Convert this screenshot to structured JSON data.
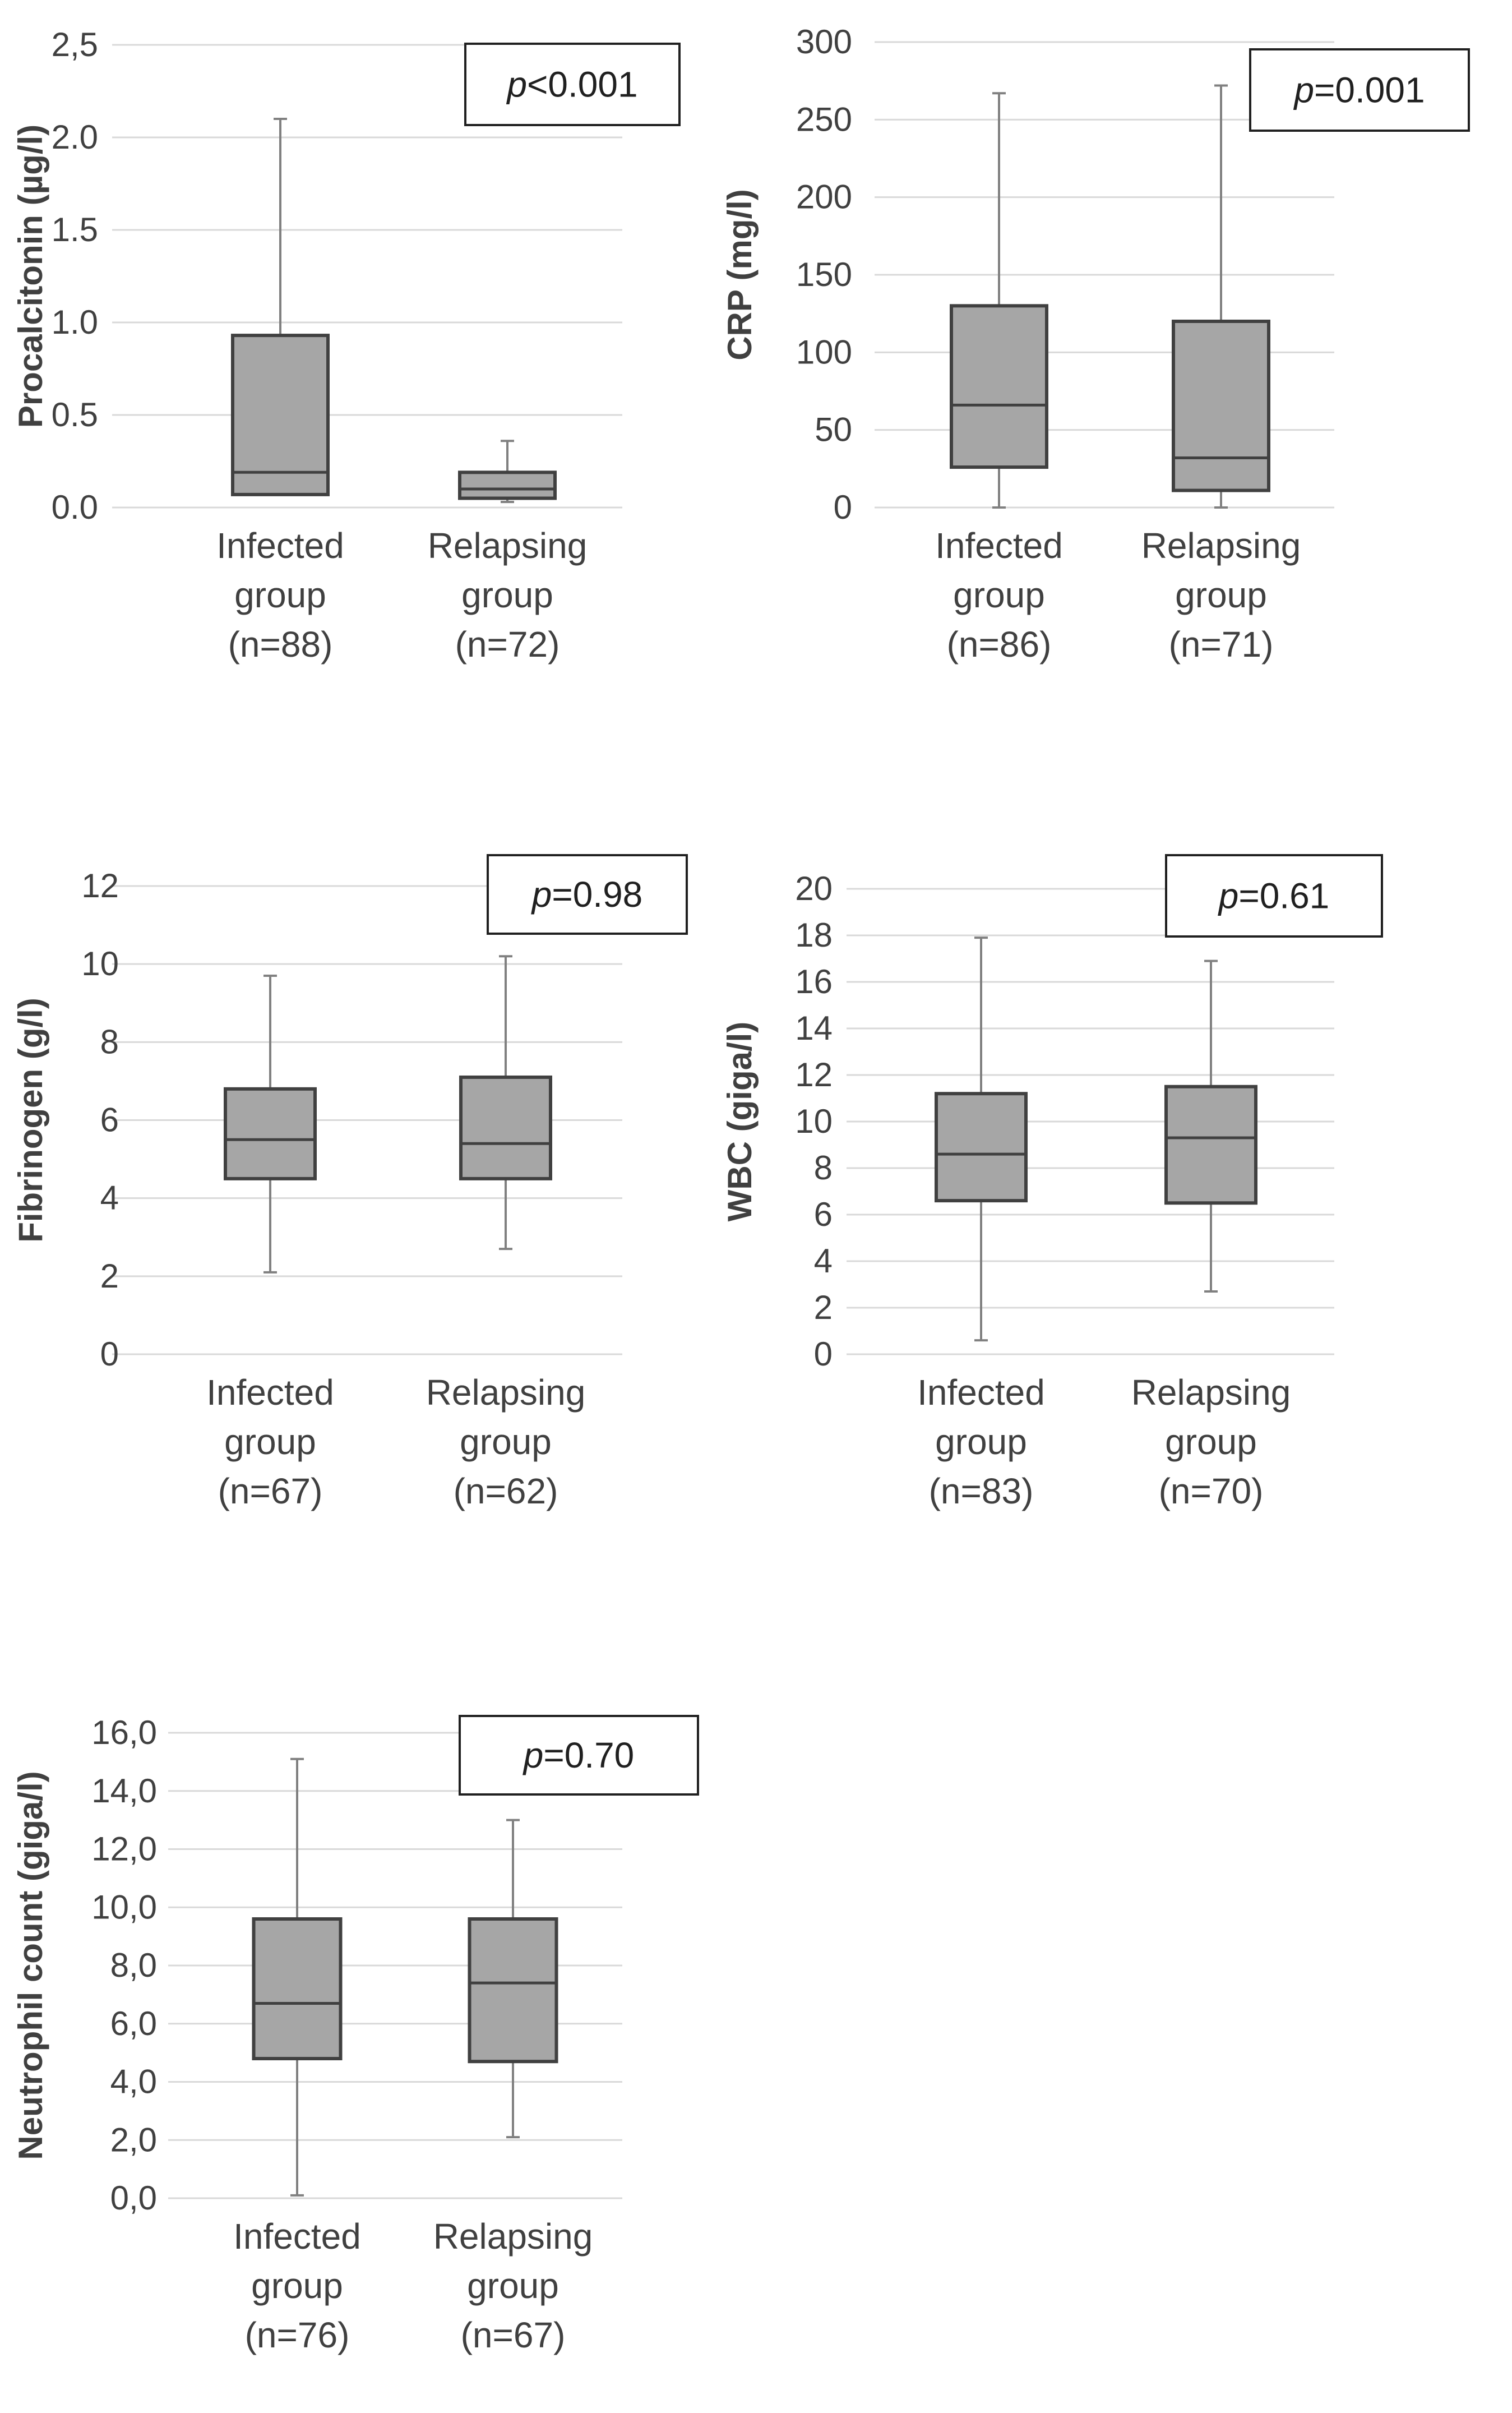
{
  "chart_data": [
    {
      "type": "boxplot",
      "ylabel": "Procalcitonin (µg/l)",
      "ylim": [
        0,
        2.5
      ],
      "yticks": [
        "0.0",
        "0.5",
        "1.0",
        "1.5",
        "2.0",
        "2,5"
      ],
      "p_prefix": "p",
      "p_rest": "<0.001",
      "groups": [
        {
          "label_lines": [
            "Infected",
            "group",
            "(n=88)"
          ],
          "min": 0.07,
          "q1": 0.07,
          "median": 0.19,
          "q3": 0.93,
          "max": 2.1
        },
        {
          "label_lines": [
            "Relapsing",
            "group",
            "(n=72)"
          ],
          "min": 0.03,
          "q1": 0.05,
          "median": 0.1,
          "q3": 0.19,
          "max": 0.36
        }
      ]
    },
    {
      "type": "boxplot",
      "ylabel": "CRP (mg/l)",
      "ylim": [
        0,
        300
      ],
      "yticks": [
        "0",
        "50",
        "100",
        "150",
        "200",
        "250",
        "300"
      ],
      "p_prefix": "p",
      "p_rest": "=0.001",
      "groups": [
        {
          "label_lines": [
            "Infected",
            "group",
            "(n=86)"
          ],
          "min": 0,
          "q1": 26,
          "median": 66,
          "q3": 130,
          "max": 267
        },
        {
          "label_lines": [
            "Relapsing",
            "group",
            "(n=71)"
          ],
          "min": 0,
          "q1": 11,
          "median": 32,
          "q3": 120,
          "max": 272
        }
      ]
    },
    {
      "type": "boxplot",
      "ylabel": "Fibrinogen (g/l)",
      "ylim": [
        0,
        12
      ],
      "yticks": [
        "0",
        "2",
        "4",
        "6",
        "8",
        "10",
        "12"
      ],
      "p_prefix": "p",
      "p_rest": "=0.98",
      "groups": [
        {
          "label_lines": [
            "Infected",
            "group",
            "(n=67)"
          ],
          "min": 2.1,
          "q1": 4.5,
          "median": 5.5,
          "q3": 6.8,
          "max": 9.7
        },
        {
          "label_lines": [
            "Relapsing",
            "group",
            "(n=62)"
          ],
          "min": 2.7,
          "q1": 4.5,
          "median": 5.4,
          "q3": 7.1,
          "max": 10.2
        }
      ]
    },
    {
      "type": "boxplot",
      "ylabel": "WBC (giga/l)",
      "ylim": [
        0,
        20
      ],
      "yticks": [
        "0",
        "2",
        "4",
        "6",
        "8",
        "10",
        "12",
        "14",
        "16",
        "18",
        "20"
      ],
      "p_prefix": "p",
      "p_rest": "=0.61",
      "groups": [
        {
          "label_lines": [
            "Infected",
            "group",
            "(n=83)"
          ],
          "min": 0.6,
          "q1": 6.6,
          "median": 8.6,
          "q3": 11.2,
          "max": 17.9
        },
        {
          "label_lines": [
            "Relapsing",
            "group",
            "(n=70)"
          ],
          "min": 2.7,
          "q1": 6.5,
          "median": 9.3,
          "q3": 11.5,
          "max": 16.9
        }
      ]
    },
    {
      "type": "boxplot",
      "ylabel": "Neutrophil count (giga/l)",
      "ylim": [
        0,
        16
      ],
      "yticks": [
        "0,0",
        "2,0",
        "4,0",
        "6,0",
        "8,0",
        "10,0",
        "12,0",
        "14,0",
        "16,0"
      ],
      "p_prefix": "p",
      "p_rest": "=0.70",
      "groups": [
        {
          "label_lines": [
            "Infected",
            "group",
            "(n=76)"
          ],
          "min": 0.1,
          "q1": 4.8,
          "median": 6.7,
          "q3": 9.6,
          "max": 15.1
        },
        {
          "label_lines": [
            "Relapsing",
            "group",
            "(n=67)"
          ],
          "min": 2.1,
          "q1": 4.7,
          "median": 7.4,
          "q3": 9.6,
          "max": 13.0
        }
      ]
    }
  ]
}
